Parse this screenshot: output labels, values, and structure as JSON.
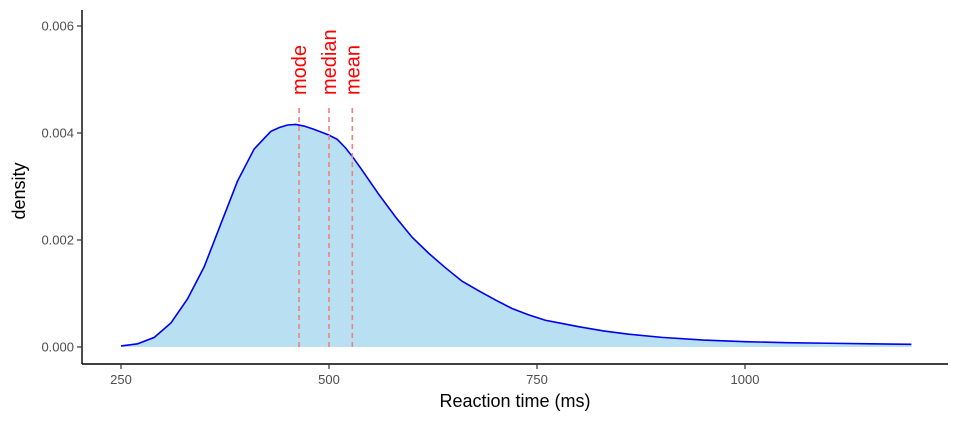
{
  "chart_data": {
    "type": "area",
    "title": "",
    "xlabel": "Reaction time (ms)",
    "ylabel": "density",
    "xlim": [
      250,
      1200
    ],
    "ylim": [
      0,
      0.006
    ],
    "x_ticks": [
      250,
      500,
      750,
      1000
    ],
    "y_ticks": [
      0.0,
      0.002,
      0.004,
      0.006
    ],
    "x_tick_labels": [
      "250",
      "500",
      "750",
      "1000"
    ],
    "y_tick_labels": [
      "0.000",
      "0.002",
      "0.004",
      "0.006"
    ],
    "grid": false,
    "legend": "none",
    "series": [
      {
        "x": [
          250,
          270,
          290,
          310,
          330,
          350,
          370,
          390,
          410,
          430,
          440,
          450,
          460,
          470,
          480,
          490,
          500,
          510,
          520,
          530,
          540,
          560,
          580,
          600,
          620,
          640,
          660,
          680,
          700,
          720,
          740,
          760,
          780,
          800,
          830,
          860,
          900,
          950,
          1000,
          1050,
          1100,
          1150,
          1200
        ],
        "values": [
          2e-05,
          6e-05,
          0.00018,
          0.00045,
          0.0009,
          0.0015,
          0.0023,
          0.0031,
          0.0037,
          0.00403,
          0.0041,
          0.00415,
          0.00416,
          0.00413,
          0.00408,
          0.00402,
          0.00396,
          0.00388,
          0.00372,
          0.00352,
          0.0033,
          0.00285,
          0.00243,
          0.00205,
          0.00175,
          0.00148,
          0.00123,
          0.00105,
          0.00088,
          0.00072,
          0.0006,
          0.0005,
          0.00044,
          0.00038,
          0.0003,
          0.00024,
          0.00018,
          0.00013,
          0.0001,
          8e-05,
          7e-05,
          6e-05,
          5e-05
        ],
        "fill": "#b8e0f2",
        "line": "#0000ee"
      }
    ],
    "markers": [
      {
        "label": "mode",
        "x": 464
      },
      {
        "label": "median",
        "x": 500
      },
      {
        "label": "mean",
        "x": 528
      }
    ],
    "marker_color": "#ff0000",
    "marker_line_color": "#f08080"
  }
}
